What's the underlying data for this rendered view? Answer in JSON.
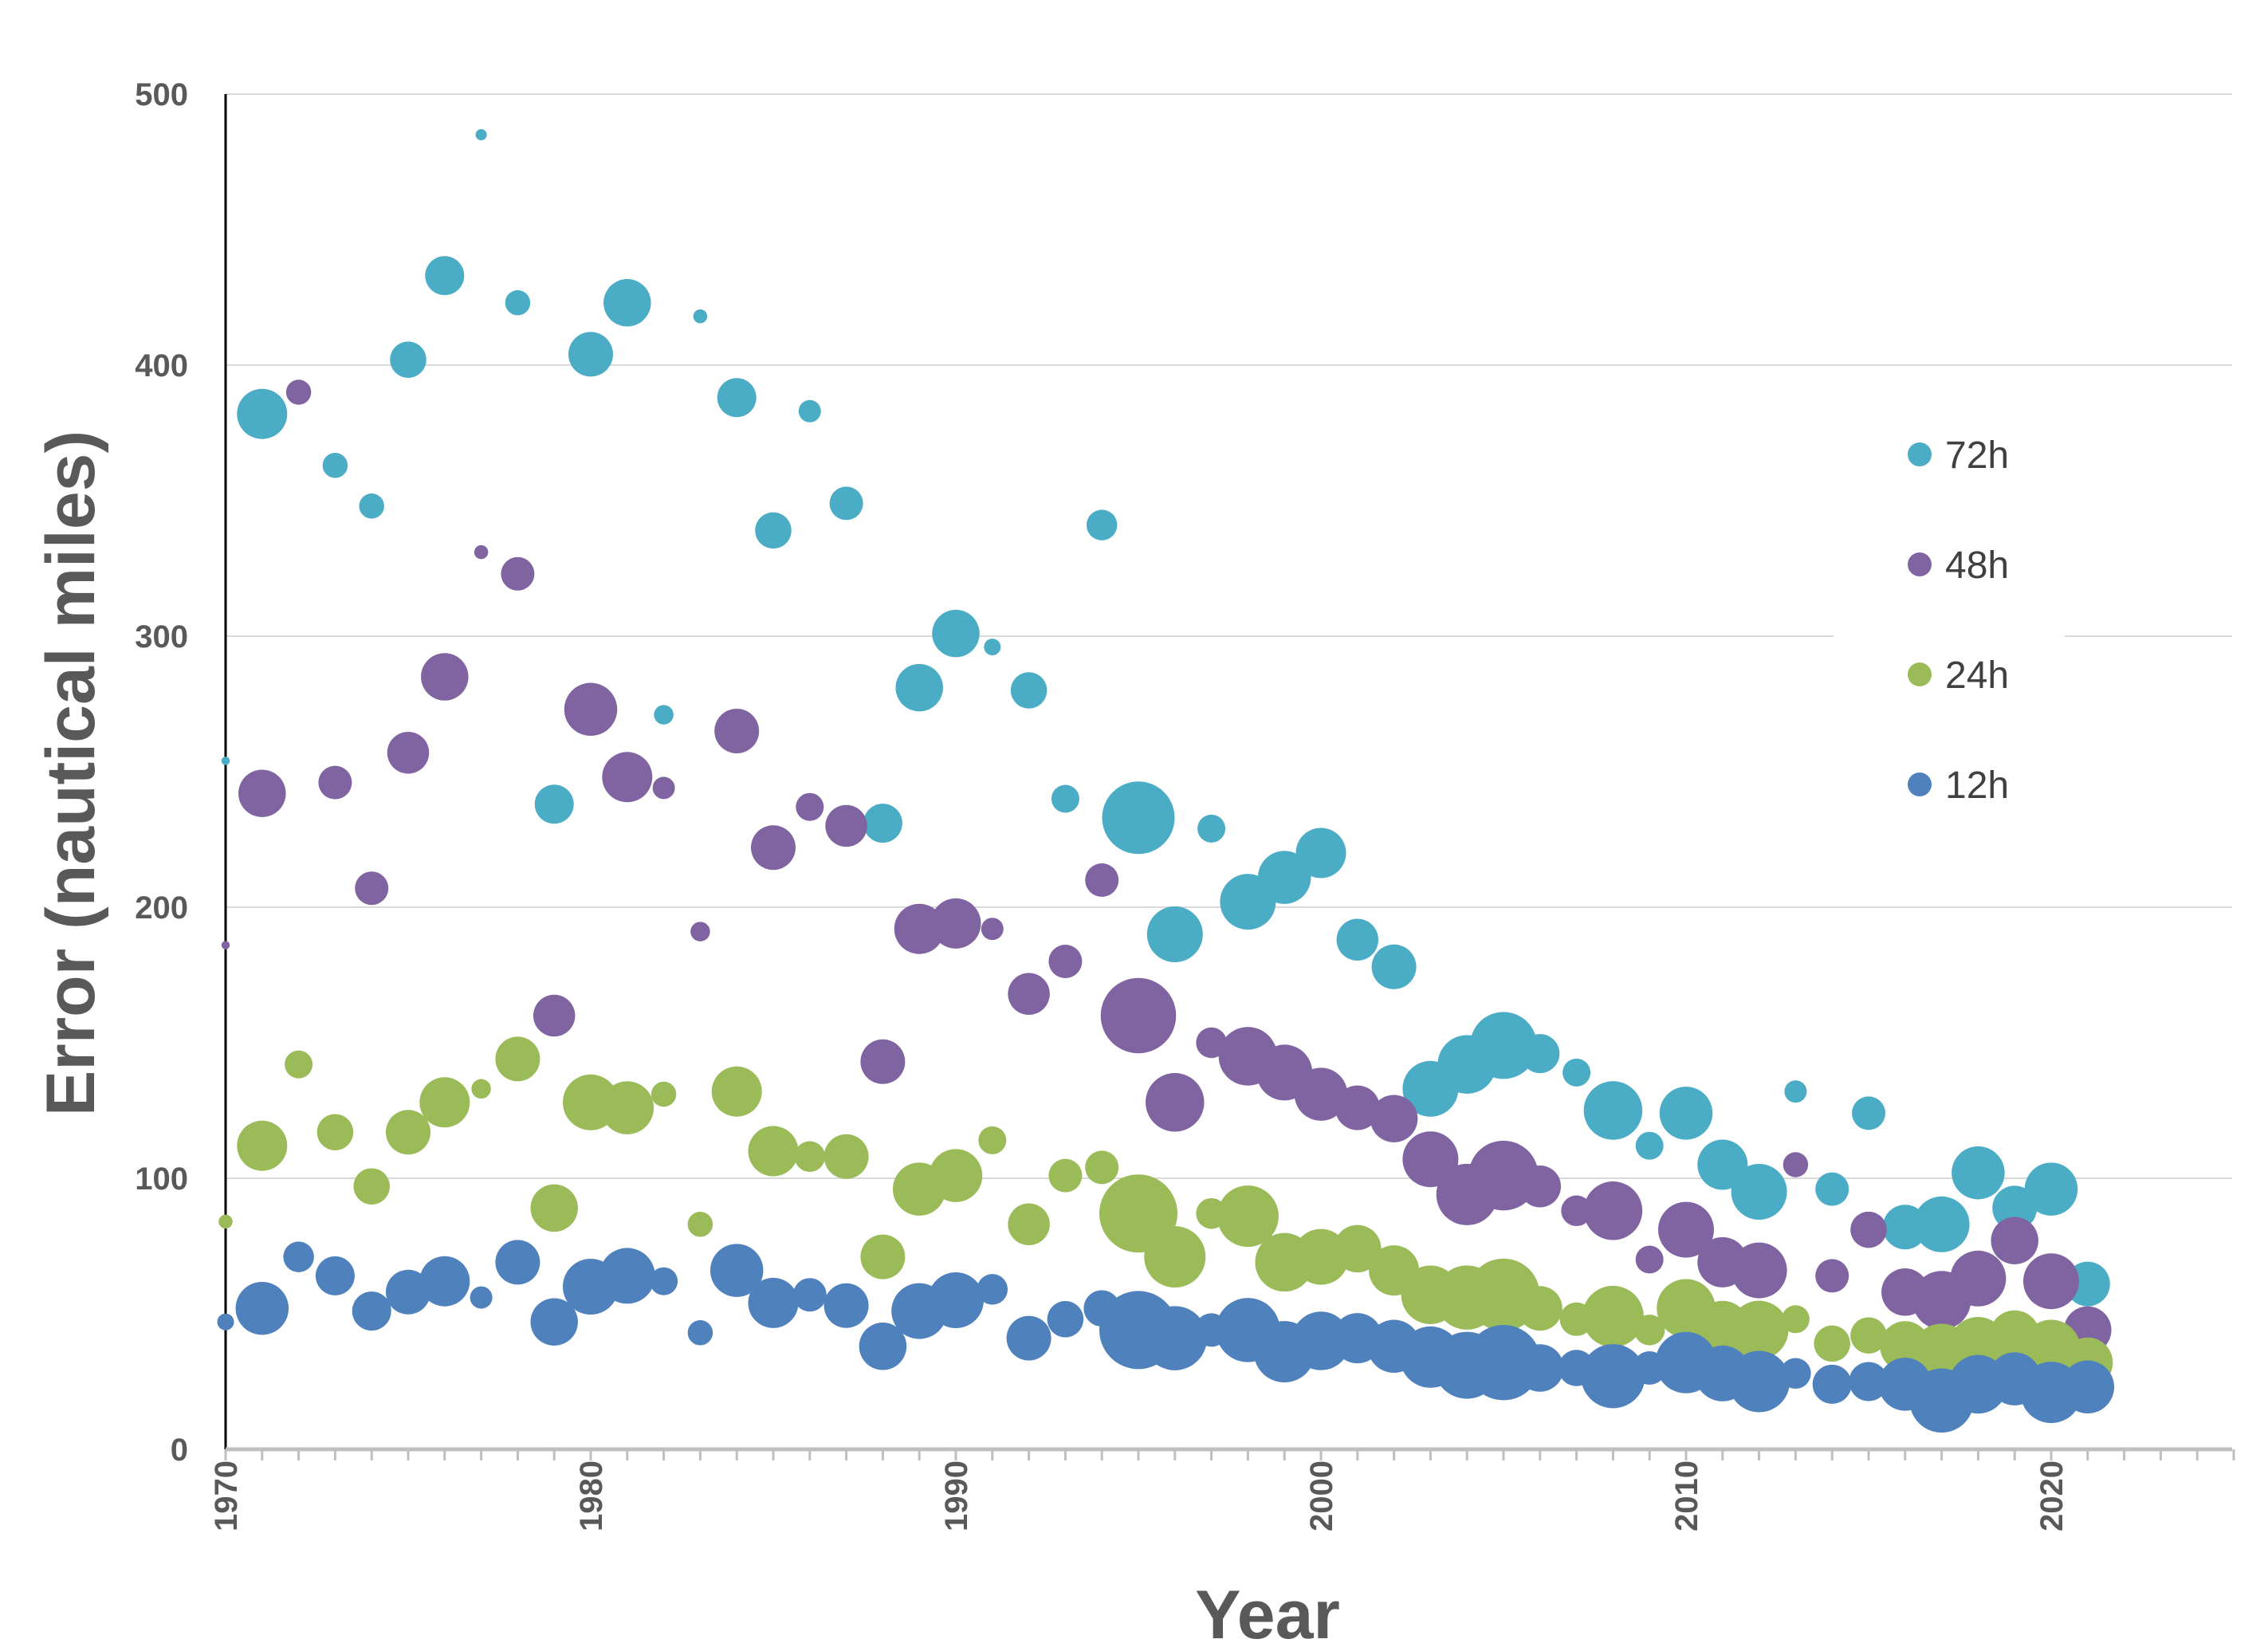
{
  "chart_data": {
    "type": "scatter",
    "subtype": "bubble",
    "title": "",
    "xlabel": "Year",
    "ylabel": "Error (nautical miles)",
    "xlim": [
      1970,
      2025
    ],
    "ylim": [
      0,
      500
    ],
    "xticks": [
      1970,
      1980,
      1990,
      2000,
      2010,
      2020
    ],
    "yticks": [
      0,
      100,
      200,
      300,
      400,
      500
    ],
    "grid": true,
    "legend_position": "right",
    "series": [
      {
        "name": "72h",
        "color": "#4BACC6",
        "points": [
          [
            1970,
            254,
            0.3
          ],
          [
            1971,
            382,
            1.8
          ],
          [
            1973,
            363,
            0.9
          ],
          [
            1974,
            348,
            0.9
          ],
          [
            1975,
            402,
            1.3
          ],
          [
            1976,
            433,
            1.4
          ],
          [
            1977,
            485,
            0.4
          ],
          [
            1978,
            423,
            0.9
          ],
          [
            1979,
            238,
            1.4
          ],
          [
            1980,
            404,
            1.6
          ],
          [
            1981,
            423,
            1.7
          ],
          [
            1982,
            271,
            0.7
          ],
          [
            1983,
            418,
            0.5
          ],
          [
            1984,
            388,
            1.4
          ],
          [
            1985,
            339,
            1.3
          ],
          [
            1986,
            383,
            0.8
          ],
          [
            1987,
            349,
            1.2
          ],
          [
            1988,
            231,
            1.4
          ],
          [
            1989,
            281,
            1.7
          ],
          [
            1990,
            301,
            1.7
          ],
          [
            1991,
            296,
            0.6
          ],
          [
            1992,
            280,
            1.3
          ],
          [
            1993,
            240,
            1.0
          ],
          [
            1994,
            341,
            1.1
          ],
          [
            1995,
            233,
            2.6
          ],
          [
            1996,
            190,
            2.0
          ],
          [
            1997,
            229,
            1.0
          ],
          [
            1998,
            202,
            2.0
          ],
          [
            1999,
            211,
            1.9
          ],
          [
            2000,
            220,
            1.8
          ],
          [
            2001,
            188,
            1.5
          ],
          [
            2002,
            178,
            1.6
          ],
          [
            2003,
            133,
            2.0
          ],
          [
            2004,
            142,
            2.1
          ],
          [
            2005,
            149,
            2.4
          ],
          [
            2006,
            146,
            1.4
          ],
          [
            2007,
            139,
            1.0
          ],
          [
            2008,
            125,
            2.1
          ],
          [
            2009,
            112,
            1.0
          ],
          [
            2010,
            124,
            1.9
          ],
          [
            2011,
            105,
            1.8
          ],
          [
            2012,
            95,
            2.0
          ],
          [
            2013,
            132,
            0.8
          ],
          [
            2014,
            96,
            1.2
          ],
          [
            2015,
            124,
            1.2
          ],
          [
            2016,
            82,
            1.6
          ],
          [
            2017,
            83,
            2.0
          ],
          [
            2018,
            102,
            1.9
          ],
          [
            2019,
            89,
            1.6
          ],
          [
            2020,
            96,
            1.9
          ],
          [
            2021,
            61,
            1.6
          ]
        ]
      },
      {
        "name": "48h",
        "color": "#8064A2",
        "points": [
          [
            1970,
            186,
            0.3
          ],
          [
            1971,
            242,
            1.7
          ],
          [
            1972,
            390,
            0.9
          ],
          [
            1973,
            246,
            1.2
          ],
          [
            1974,
            207,
            1.2
          ],
          [
            1975,
            257,
            1.5
          ],
          [
            1976,
            285,
            1.7
          ],
          [
            1977,
            331,
            0.5
          ],
          [
            1978,
            323,
            1.2
          ],
          [
            1979,
            160,
            1.5
          ],
          [
            1980,
            273,
            1.9
          ],
          [
            1981,
            248,
            1.8
          ],
          [
            1982,
            244,
            0.8
          ],
          [
            1983,
            191,
            0.7
          ],
          [
            1984,
            265,
            1.6
          ],
          [
            1985,
            222,
            1.6
          ],
          [
            1986,
            237,
            1.0
          ],
          [
            1987,
            230,
            1.5
          ],
          [
            1988,
            143,
            1.6
          ],
          [
            1989,
            192,
            1.8
          ],
          [
            1990,
            194,
            1.8
          ],
          [
            1991,
            192,
            0.8
          ],
          [
            1992,
            168,
            1.5
          ],
          [
            1993,
            180,
            1.2
          ],
          [
            1994,
            210,
            1.2
          ],
          [
            1995,
            160,
            2.7
          ],
          [
            1996,
            128,
            2.1
          ],
          [
            1997,
            150,
            1.1
          ],
          [
            1998,
            145,
            2.1
          ],
          [
            1999,
            139,
            2.0
          ],
          [
            2000,
            131,
            1.9
          ],
          [
            2001,
            126,
            1.6
          ],
          [
            2002,
            122,
            1.7
          ],
          [
            2003,
            107,
            2.0
          ],
          [
            2004,
            94,
            2.2
          ],
          [
            2005,
            101,
            2.5
          ],
          [
            2006,
            97,
            1.5
          ],
          [
            2007,
            88,
            1.1
          ],
          [
            2008,
            88,
            2.1
          ],
          [
            2009,
            70,
            1.0
          ],
          [
            2010,
            81,
            2.0
          ],
          [
            2011,
            69,
            1.8
          ],
          [
            2012,
            66,
            2.0
          ],
          [
            2013,
            105,
            0.9
          ],
          [
            2014,
            64,
            1.2
          ],
          [
            2015,
            81,
            1.3
          ],
          [
            2016,
            58,
            1.7
          ],
          [
            2017,
            55,
            2.1
          ],
          [
            2018,
            63,
            2.0
          ],
          [
            2019,
            77,
            1.7
          ],
          [
            2020,
            62,
            2.0
          ],
          [
            2021,
            44,
            1.7
          ]
        ]
      },
      {
        "name": "24h",
        "color": "#9BBB59",
        "points": [
          [
            1970,
            84,
            0.5
          ],
          [
            1971,
            112,
            1.8
          ],
          [
            1972,
            142,
            1.0
          ],
          [
            1973,
            117,
            1.3
          ],
          [
            1974,
            97,
            1.3
          ],
          [
            1975,
            117,
            1.6
          ],
          [
            1976,
            128,
            1.8
          ],
          [
            1977,
            133,
            0.7
          ],
          [
            1978,
            144,
            1.6
          ],
          [
            1979,
            89,
            1.7
          ],
          [
            1980,
            128,
            2.0
          ],
          [
            1981,
            126,
            1.9
          ],
          [
            1982,
            131,
            0.9
          ],
          [
            1983,
            83,
            0.9
          ],
          [
            1984,
            132,
            1.8
          ],
          [
            1985,
            110,
            1.8
          ],
          [
            1986,
            108,
            1.1
          ],
          [
            1987,
            108,
            1.6
          ],
          [
            1988,
            71,
            1.6
          ],
          [
            1989,
            96,
            1.9
          ],
          [
            1990,
            101,
            1.9
          ],
          [
            1991,
            114,
            1.0
          ],
          [
            1992,
            83,
            1.5
          ],
          [
            1993,
            101,
            1.2
          ],
          [
            1994,
            104,
            1.2
          ],
          [
            1995,
            87,
            2.8
          ],
          [
            1996,
            71,
            2.2
          ],
          [
            1997,
            87,
            1.1
          ],
          [
            1998,
            86,
            2.2
          ],
          [
            1999,
            69,
            2.1
          ],
          [
            2000,
            71,
            2.0
          ],
          [
            2001,
            74,
            1.7
          ],
          [
            2002,
            66,
            1.8
          ],
          [
            2003,
            57,
            2.1
          ],
          [
            2004,
            56,
            2.3
          ],
          [
            2005,
            57,
            2.6
          ],
          [
            2006,
            52,
            1.6
          ],
          [
            2007,
            48,
            1.2
          ],
          [
            2008,
            49,
            2.2
          ],
          [
            2009,
            44,
            1.1
          ],
          [
            2010,
            52,
            2.1
          ],
          [
            2011,
            45,
            1.9
          ],
          [
            2012,
            44,
            2.1
          ],
          [
            2013,
            48,
            1.0
          ],
          [
            2014,
            39,
            1.3
          ],
          [
            2015,
            42,
            1.3
          ],
          [
            2016,
            38,
            1.8
          ],
          [
            2017,
            35,
            2.2
          ],
          [
            2018,
            38,
            2.1
          ],
          [
            2019,
            42,
            1.8
          ],
          [
            2020,
            37,
            2.1
          ],
          [
            2021,
            32,
            1.8
          ]
        ]
      },
      {
        "name": "12h",
        "color": "#4F81BD",
        "points": [
          [
            1970,
            47,
            0.6
          ],
          [
            1971,
            52,
            1.9
          ],
          [
            1972,
            71,
            1.1
          ],
          [
            1973,
            64,
            1.4
          ],
          [
            1974,
            51,
            1.4
          ],
          [
            1975,
            58,
            1.6
          ],
          [
            1976,
            62,
            1.8
          ],
          [
            1977,
            56,
            0.8
          ],
          [
            1978,
            69,
            1.6
          ],
          [
            1979,
            47,
            1.7
          ],
          [
            1980,
            60,
            2.0
          ],
          [
            1981,
            64,
            2.0
          ],
          [
            1982,
            62,
            1.0
          ],
          [
            1983,
            43,
            0.9
          ],
          [
            1984,
            66,
            1.9
          ],
          [
            1985,
            54,
            1.8
          ],
          [
            1986,
            57,
            1.2
          ],
          [
            1987,
            53,
            1.6
          ],
          [
            1988,
            38,
            1.7
          ],
          [
            1989,
            51,
            2.0
          ],
          [
            1990,
            55,
            2.0
          ],
          [
            1991,
            59,
            1.1
          ],
          [
            1992,
            41,
            1.6
          ],
          [
            1993,
            48,
            1.3
          ],
          [
            1994,
            52,
            1.3
          ],
          [
            1995,
            44,
            2.8
          ],
          [
            1996,
            41,
            2.3
          ],
          [
            1997,
            44,
            1.2
          ],
          [
            1998,
            44,
            2.3
          ],
          [
            1999,
            36,
            2.2
          ],
          [
            2000,
            40,
            2.1
          ],
          [
            2001,
            41,
            1.8
          ],
          [
            2002,
            38,
            1.9
          ],
          [
            2003,
            34,
            2.2
          ],
          [
            2004,
            31,
            2.4
          ],
          [
            2005,
            32,
            2.7
          ],
          [
            2006,
            30,
            1.7
          ],
          [
            2007,
            30,
            1.3
          ],
          [
            2008,
            27,
            2.3
          ],
          [
            2009,
            30,
            1.2
          ],
          [
            2010,
            32,
            2.2
          ],
          [
            2011,
            28,
            2.0
          ],
          [
            2012,
            25,
            2.2
          ],
          [
            2013,
            28,
            1.1
          ],
          [
            2014,
            24,
            1.4
          ],
          [
            2015,
            25,
            1.4
          ],
          [
            2016,
            24,
            1.9
          ],
          [
            2017,
            18,
            2.3
          ],
          [
            2018,
            24,
            2.1
          ],
          [
            2019,
            26,
            1.9
          ],
          [
            2020,
            21,
            2.2
          ],
          [
            2021,
            23,
            1.9
          ]
        ]
      }
    ]
  }
}
